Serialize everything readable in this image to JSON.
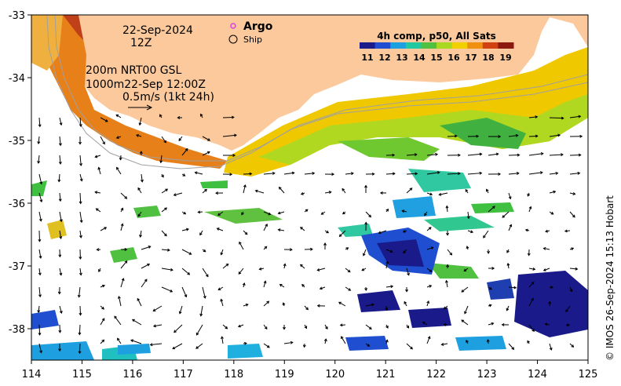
{
  "header": {
    "date": "22-Sep-2024",
    "time": "12Z",
    "product_line1": "200m  NRT00 GSL",
    "product_line2": "1000m22-Sep 12:00Z",
    "scale_label": "0.5m/s (1kt 24h)"
  },
  "legend": {
    "argo_label": "Argo",
    "ship_label": "Ship",
    "argo_color": "#e040e0"
  },
  "colorbar": {
    "title": "4h comp, p50, All Sats",
    "ticks": [
      "11",
      "12",
      "13",
      "14",
      "15",
      "16",
      "17",
      "18",
      "19"
    ],
    "colors": [
      "#1a1a8a",
      "#1f4fd0",
      "#1ea0e0",
      "#20c8a0",
      "#50c040",
      "#a8d820",
      "#f0d000",
      "#f09010",
      "#d04010",
      "#8a1a10"
    ]
  },
  "axes": {
    "x_ticks": [
      "114",
      "115",
      "116",
      "117",
      "118",
      "119",
      "120",
      "121",
      "122",
      "123",
      "124",
      "125"
    ],
    "y_ticks": [
      "-33",
      "-34",
      "-35",
      "-36",
      "-37",
      "-38"
    ],
    "x_range": [
      114,
      125
    ],
    "y_range": [
      -38.5,
      -33
    ]
  },
  "land": {
    "color": "#fbc99b"
  },
  "credit": "© IMOS 26-Sep-2024 15:13 Hobart"
}
